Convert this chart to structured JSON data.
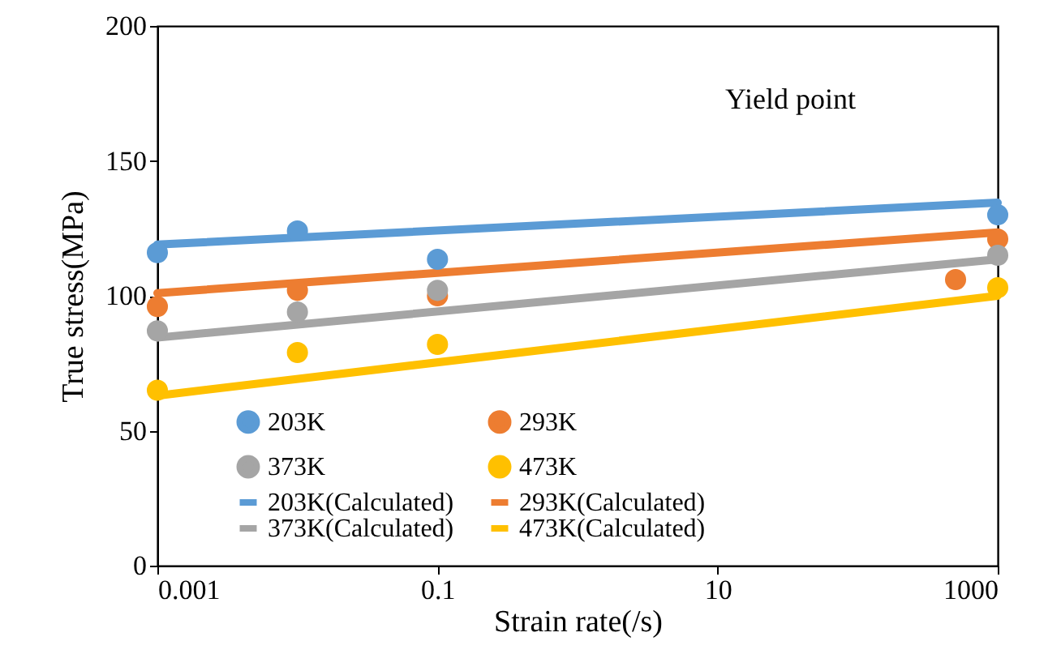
{
  "chart_data": {
    "type": "scatter",
    "xlabel": "Strain rate(/s)",
    "ylabel": "True stress(MPa)",
    "annotations": [
      "Yield point"
    ],
    "log": "x",
    "xlim": [
      0.001,
      1000
    ],
    "xticks": [
      0.001,
      0.1,
      10,
      1000
    ],
    "ylim": [
      0,
      200
    ],
    "yticks": [
      0,
      50,
      100,
      150,
      200
    ],
    "grid": false,
    "legend": "bottom",
    "marker": "circle",
    "series": [
      {
        "name": "203K",
        "color": "#5b9bd5",
        "x": [
          0.001,
          0.01,
          0.1,
          1000
        ],
        "values": [
          116,
          124,
          113.5,
          130
        ]
      },
      {
        "name": "293K",
        "color": "#ed7d31",
        "x": [
          0.001,
          0.01,
          0.1,
          500,
          1000
        ],
        "values": [
          96,
          102,
          100,
          106,
          121
        ]
      },
      {
        "name": "373K",
        "color": "#a5a5a5",
        "x": [
          0.001,
          0.01,
          0.1,
          1000
        ],
        "values": [
          87,
          94,
          102,
          115
        ]
      },
      {
        "name": "473K",
        "color": "#ffc000",
        "x": [
          0.001,
          0.01,
          0.1,
          1000
        ],
        "values": [
          65,
          79,
          82,
          103
        ]
      },
      {
        "name": "203K(Calculated)",
        "type": "line",
        "marker": "none",
        "line_style": "solid",
        "color": "#5b9bd5",
        "x": [
          0.001,
          1000
        ],
        "values": [
          119,
          134.5
        ]
      },
      {
        "name": "293K(Calculated)",
        "type": "line",
        "marker": "none",
        "line_style": "solid",
        "color": "#ed7d31",
        "x": [
          0.001,
          1000
        ],
        "values": [
          101,
          123.5
        ]
      },
      {
        "name": "373K(Calculated)",
        "type": "line",
        "marker": "none",
        "line_style": "solid",
        "color": "#a5a5a5",
        "x": [
          0.001,
          1000
        ],
        "values": [
          84.5,
          113.5
        ]
      },
      {
        "name": "473K(Calculated)",
        "type": "line",
        "marker": "none",
        "line_style": "solid",
        "color": "#ffc000",
        "x": [
          0.001,
          1000
        ],
        "values": [
          63,
          100
        ]
      }
    ]
  }
}
